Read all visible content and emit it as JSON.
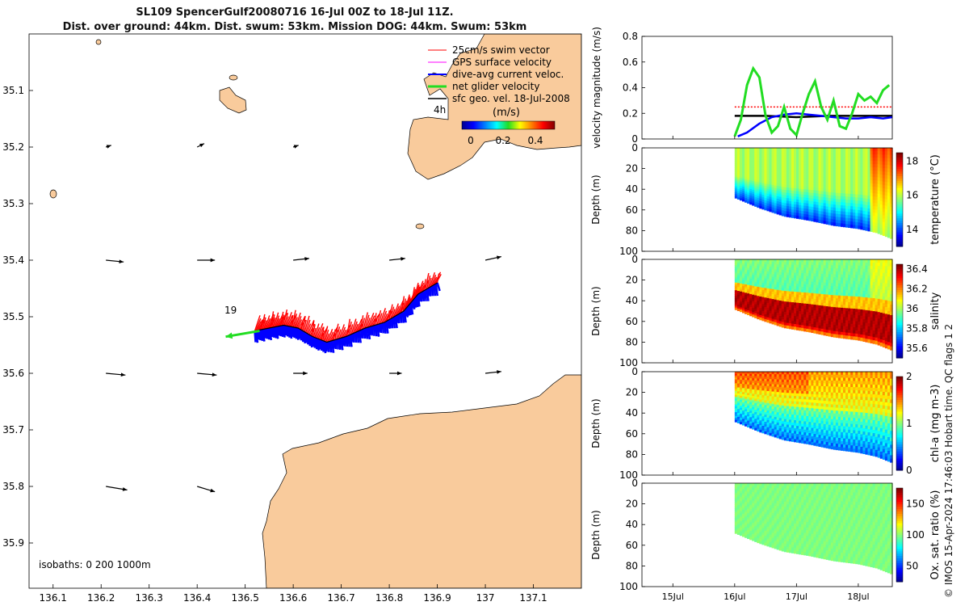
{
  "header": {
    "title_line1": "SL109 SpencerGulf20080716 16-Jul 00Z to 18-Jul 11Z.",
    "title_line2": "Dist. over ground: 44km. Dist. swum: 53km. Mission DOG: 44km. Swum: 53km"
  },
  "credit": "© IMOS 15-Apr-2024 17:46:03 Hobart time. QC flags 1  2",
  "colors": {
    "land": "#f9cb9c",
    "swim": "#ff0000",
    "gps": "#ff00ff",
    "dive": "#0000ff",
    "net": "#22dd22",
    "geo": "#000000"
  },
  "chart_data": [
    {
      "type": "scatter",
      "name": "track-map",
      "xlim": [
        136.05,
        137.2
      ],
      "ylim": [
        35.0,
        35.98
      ],
      "y_reversed": true,
      "xticks": [
        "136.1",
        "136.2",
        "136.3",
        "136.4",
        "136.5",
        "136.6",
        "136.7",
        "136.8",
        "136.9",
        "137",
        "137.1"
      ],
      "yticks": [
        "35.1",
        "35.2",
        "35.3",
        "35.4",
        "35.5",
        "35.6",
        "35.7",
        "35.8",
        "35.9"
      ],
      "legend": {
        "title": "(m/s)",
        "entries": [
          "25cm/s swim vector",
          "GPS surface velocity",
          "dive-avg current veloc.",
          "net glider velocity",
          "sfc geo. vel. 18-Jul-2008"
        ],
        "colorbar_ticks": [
          "0",
          "0.2",
          "0.4"
        ]
      },
      "annotations": {
        "hour_label": "4h",
        "net_label": "19",
        "isobaths": "isobaths: 0   200  1000m"
      },
      "glider_track": [
        [
          136.9,
          35.44
        ],
        [
          136.86,
          35.46
        ],
        [
          136.83,
          35.49
        ],
        [
          136.79,
          35.51
        ],
        [
          136.75,
          35.52
        ],
        [
          136.71,
          35.535
        ],
        [
          136.67,
          35.545
        ],
        [
          136.64,
          35.535
        ],
        [
          136.61,
          35.52
        ],
        [
          136.58,
          35.515
        ],
        [
          136.55,
          35.52
        ],
        [
          136.52,
          35.525
        ]
      ],
      "geo_vectors": [
        {
          "x": 136.21,
          "y": 35.2,
          "u": 0.3,
          "v": -0.1
        },
        {
          "x": 136.4,
          "y": 35.2,
          "u": 0.4,
          "v": -0.2
        },
        {
          "x": 136.6,
          "y": 35.2,
          "u": 0.3,
          "v": -0.1
        },
        {
          "x": 136.21,
          "y": 35.4,
          "u": 1.0,
          "v": 0.1
        },
        {
          "x": 136.4,
          "y": 35.4,
          "u": 1.0,
          "v": 0.0
        },
        {
          "x": 136.6,
          "y": 35.4,
          "u": 0.9,
          "v": -0.1
        },
        {
          "x": 136.8,
          "y": 35.4,
          "u": 0.9,
          "v": -0.1
        },
        {
          "x": 137.0,
          "y": 35.4,
          "u": 0.9,
          "v": -0.2
        },
        {
          "x": 136.21,
          "y": 35.6,
          "u": 1.1,
          "v": 0.1
        },
        {
          "x": 136.4,
          "y": 35.6,
          "u": 1.1,
          "v": 0.1
        },
        {
          "x": 136.6,
          "y": 35.6,
          "u": 0.8,
          "v": 0.0
        },
        {
          "x": 136.8,
          "y": 35.6,
          "u": 0.7,
          "v": -0.0
        },
        {
          "x": 137.0,
          "y": 35.6,
          "u": 0.9,
          "v": -0.1
        },
        {
          "x": 136.21,
          "y": 35.8,
          "u": 1.2,
          "v": 0.2
        },
        {
          "x": 136.4,
          "y": 35.8,
          "u": 1.0,
          "v": 0.3
        }
      ],
      "net_velocity": {
        "x": 136.53,
        "y": 35.525,
        "u": -0.35,
        "v": 0.06
      }
    },
    {
      "type": "line",
      "name": "velocity-magnitude",
      "ylabel": "velocity magnitude (m/s)",
      "ylim": [
        0,
        0.8
      ],
      "yticks": [
        "0",
        "0.2",
        "0.4",
        "0.6",
        "0.8"
      ],
      "xlim": [
        14.5,
        18.55
      ],
      "series": [
        {
          "name": "net glider velocity",
          "color": "#22dd22",
          "x": [
            16.0,
            16.1,
            16.2,
            16.3,
            16.4,
            16.5,
            16.6,
            16.7,
            16.8,
            16.9,
            17.0,
            17.1,
            17.2,
            17.3,
            17.4,
            17.5,
            17.6,
            17.7,
            17.8,
            17.9,
            18.0,
            18.1,
            18.2,
            18.3,
            18.4,
            18.5
          ],
          "y": [
            0.02,
            0.15,
            0.42,
            0.55,
            0.48,
            0.18,
            0.05,
            0.1,
            0.25,
            0.08,
            0.03,
            0.2,
            0.35,
            0.45,
            0.25,
            0.15,
            0.3,
            0.1,
            0.08,
            0.2,
            0.35,
            0.3,
            0.33,
            0.28,
            0.38,
            0.42
          ]
        },
        {
          "name": "dive-avg current veloc.",
          "color": "#0000ff",
          "x": [
            16.05,
            16.2,
            16.4,
            16.6,
            16.8,
            17.0,
            17.2,
            17.4,
            17.6,
            17.8,
            18.0,
            18.2,
            18.4,
            18.55
          ],
          "y": [
            0.02,
            0.05,
            0.12,
            0.17,
            0.19,
            0.2,
            0.19,
            0.18,
            0.17,
            0.16,
            0.16,
            0.17,
            0.16,
            0.17
          ]
        },
        {
          "name": "sfc geo. vel.",
          "color": "#000000",
          "x": [
            16.0,
            16.5,
            17.0,
            17.5,
            18.0,
            18.55
          ],
          "y": [
            0.18,
            0.18,
            0.17,
            0.18,
            0.18,
            0.18
          ]
        },
        {
          "name": "25cm/s swim vector",
          "color": "#ff0000",
          "x": [
            16.0,
            18.55
          ],
          "y": [
            0.25,
            0.25
          ]
        }
      ]
    },
    {
      "type": "heatmap",
      "name": "temperature-section",
      "ylabel": "Depth (m)",
      "cbar_label": "temperature (°C)",
      "ylim": [
        0,
        100
      ],
      "yticks": [
        "0",
        "20",
        "40",
        "60",
        "80",
        "100"
      ],
      "cbar_ticks": [
        "14",
        "16",
        "18"
      ],
      "clim": [
        13,
        18.5
      ],
      "xlim": [
        14.5,
        18.55
      ],
      "bottom_depth": {
        "x": [
          16.0,
          16.4,
          16.8,
          17.2,
          17.6,
          18.0,
          18.3,
          18.55
        ],
        "y": [
          48,
          58,
          66,
          70,
          75,
          78,
          82,
          88
        ]
      },
      "surface_value": 16.0,
      "deep_value": 14.5,
      "right_value": 17.5
    },
    {
      "type": "heatmap",
      "name": "salinity-section",
      "ylabel": "Depth (m)",
      "cbar_label": "salinity",
      "ylim": [
        0,
        100
      ],
      "yticks": [
        "0",
        "20",
        "40",
        "60",
        "80",
        "100"
      ],
      "cbar_ticks": [
        "35.6",
        "35.8",
        "36",
        "36.2",
        "36.4"
      ],
      "clim": [
        35.5,
        36.45
      ],
      "xlim": [
        14.5,
        18.55
      ],
      "bottom_depth": {
        "x": [
          16.0,
          16.4,
          16.8,
          17.2,
          17.6,
          18.0,
          18.3,
          18.55
        ],
        "y": [
          48,
          58,
          66,
          70,
          75,
          78,
          82,
          88
        ]
      },
      "surface_value": 36.0,
      "deep_value": 36.4
    },
    {
      "type": "heatmap",
      "name": "chlorophyll-section",
      "ylabel": "Depth (m)",
      "cbar_label": "chl-a (mg m-3)",
      "ylim": [
        0,
        100
      ],
      "yticks": [
        "0",
        "20",
        "40",
        "60",
        "80",
        "100"
      ],
      "cbar_ticks": [
        "0",
        "1",
        "2"
      ],
      "clim": [
        0,
        2
      ],
      "xlim": [
        14.5,
        18.55
      ],
      "bottom_depth": {
        "x": [
          16.0,
          16.4,
          16.8,
          17.2,
          17.6,
          18.0,
          18.3,
          18.55
        ],
        "y": [
          48,
          58,
          66,
          70,
          75,
          78,
          82,
          88
        ]
      },
      "surface_value": 1.5,
      "deep_value": 0.8
    },
    {
      "type": "heatmap",
      "name": "oxygen-section",
      "ylabel": "Depth (m)",
      "cbar_label": "Ox. sat. ratio (%)",
      "ylim": [
        0,
        100
      ],
      "yticks": [
        "0",
        "20",
        "40",
        "60",
        "80",
        "100"
      ],
      "cbar_ticks": [
        "50",
        "100",
        "150"
      ],
      "clim": [
        25,
        175
      ],
      "xlim": [
        14.5,
        18.55
      ],
      "xticks": [
        "15Jul",
        "16Jul",
        "17Jul",
        "18Jul"
      ],
      "bottom_depth": {
        "x": [
          16.0,
          16.4,
          16.8,
          17.2,
          17.6,
          18.0,
          18.3,
          18.55
        ],
        "y": [
          48,
          58,
          66,
          70,
          75,
          78,
          82,
          88
        ]
      },
      "surface_value": 100,
      "deep_value": 100
    }
  ]
}
